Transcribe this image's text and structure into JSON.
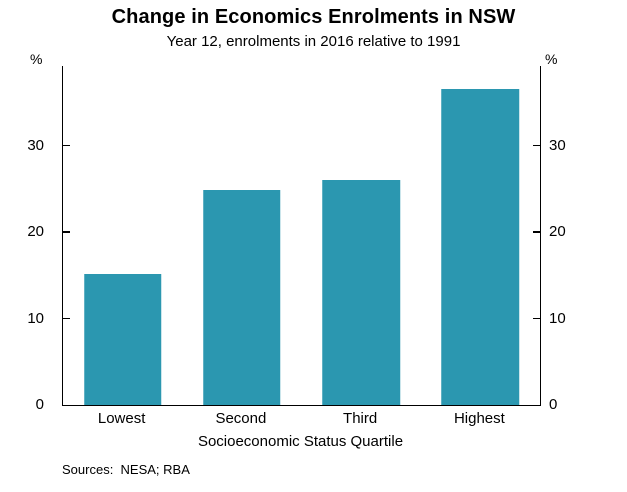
{
  "title": "Change in Economics Enrolments in NSW",
  "subtitle": "Year 12, enrolments in 2016 relative to 1991",
  "footer": {
    "sources": "Sources:  NESA; RBA"
  },
  "chart_data": {
    "type": "bar",
    "title": "Change in Economics Enrolments in NSW",
    "subtitle": "Year 12, enrolments in 2016 relative to 1991",
    "categories": [
      "Lowest",
      "Second",
      "Third",
      "Highest"
    ],
    "values": [
      15.2,
      24.9,
      26.0,
      36.6
    ],
    "xlabel": "Socioeconomic Status Quartile",
    "ylabel": "%",
    "unit": "%",
    "ylim": [
      0,
      39.2
    ],
    "yticks": [
      0,
      10,
      20,
      30
    ],
    "bar_color": "#2b97b0",
    "grid": false,
    "legend": false,
    "sources": "Sources:  NESA; RBA"
  }
}
